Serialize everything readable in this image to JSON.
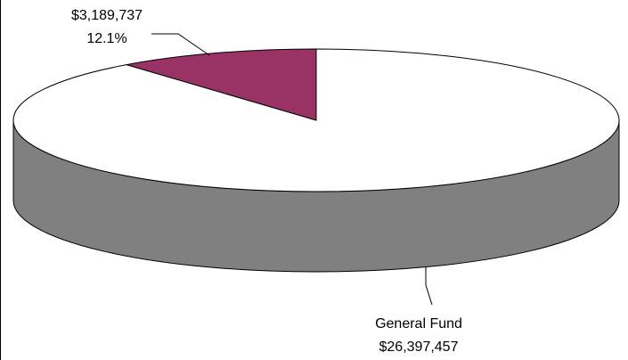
{
  "chart_data": {
    "type": "pie3d",
    "categories": [
      null,
      "General Fund"
    ],
    "values": [
      3189737,
      26397457
    ],
    "value_labels": [
      "$3,189,737",
      "$26,397,457"
    ],
    "percent_labels": [
      "12.1%",
      null
    ],
    "colors": [
      "#993366",
      "#ffffff"
    ],
    "side_color": "#808080"
  }
}
